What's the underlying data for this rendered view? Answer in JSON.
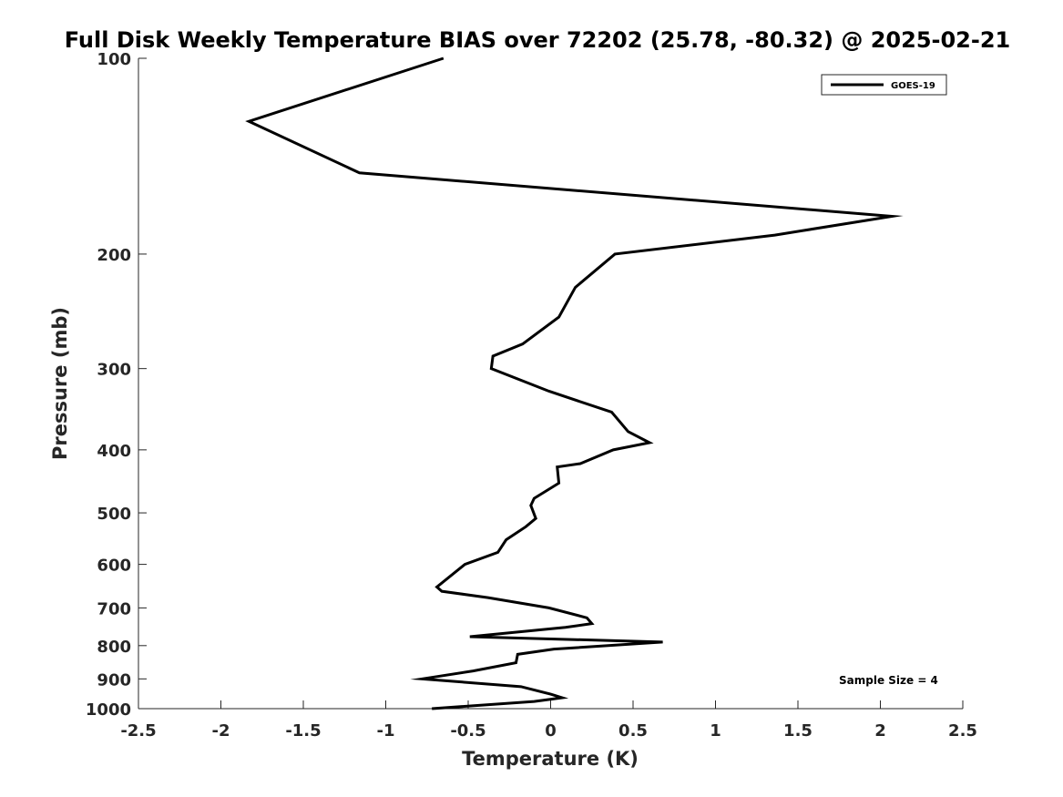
{
  "chart_data": {
    "type": "line",
    "title": "Full Disk Weekly Temperature BIAS over 72202 (25.78, -80.32) @ 2025-02-21",
    "xlabel": "Temperature (K)",
    "ylabel": "Pressure (mb)",
    "xlim": [
      -2.5,
      2.5
    ],
    "ylim": [
      100,
      1000
    ],
    "y_scale": "log",
    "y_reversed": true,
    "xticks": [
      -2.5,
      -2,
      -1.5,
      -1,
      -0.5,
      0,
      0.5,
      1,
      1.5,
      2,
      2.5
    ],
    "xtick_labels": [
      "-2.5",
      "-2",
      "-1.5",
      "-1",
      "-0.5",
      "0",
      "0.5",
      "1",
      "1.5",
      "2",
      "2.5"
    ],
    "yticks": [
      100,
      200,
      300,
      400,
      500,
      600,
      700,
      800,
      900,
      1000
    ],
    "ytick_labels": [
      "100",
      "200",
      "300",
      "400",
      "500",
      "600",
      "700",
      "800",
      "900",
      "1000"
    ],
    "grid": false,
    "legend_position": "top-right",
    "annotation": "Sample Size = 4",
    "series": [
      {
        "name": "GOES-19",
        "color": "#000000",
        "points": [
          {
            "x": -0.65,
            "y": 100
          },
          {
            "x": -1.83,
            "y": 125
          },
          {
            "x": -1.16,
            "y": 150
          },
          {
            "x": 2.07,
            "y": 175
          },
          {
            "x": 1.36,
            "y": 187
          },
          {
            "x": 0.39,
            "y": 200
          },
          {
            "x": 0.15,
            "y": 225
          },
          {
            "x": 0.05,
            "y": 250
          },
          {
            "x": -0.17,
            "y": 275
          },
          {
            "x": -0.35,
            "y": 287
          },
          {
            "x": -0.36,
            "y": 300
          },
          {
            "x": -0.01,
            "y": 325
          },
          {
            "x": 0.37,
            "y": 350
          },
          {
            "x": 0.47,
            "y": 375
          },
          {
            "x": 0.6,
            "y": 390
          },
          {
            "x": 0.38,
            "y": 400
          },
          {
            "x": 0.18,
            "y": 420
          },
          {
            "x": 0.04,
            "y": 425
          },
          {
            "x": 0.05,
            "y": 450
          },
          {
            "x": -0.1,
            "y": 475
          },
          {
            "x": -0.12,
            "y": 487
          },
          {
            "x": -0.09,
            "y": 510
          },
          {
            "x": -0.15,
            "y": 525
          },
          {
            "x": -0.27,
            "y": 550
          },
          {
            "x": -0.32,
            "y": 575
          },
          {
            "x": -0.52,
            "y": 600
          },
          {
            "x": -0.69,
            "y": 650
          },
          {
            "x": -0.66,
            "y": 660
          },
          {
            "x": -0.38,
            "y": 675
          },
          {
            "x": -0.01,
            "y": 700
          },
          {
            "x": 0.22,
            "y": 725
          },
          {
            "x": 0.25,
            "y": 740
          },
          {
            "x": 0.09,
            "y": 750
          },
          {
            "x": -0.49,
            "y": 775
          },
          {
            "x": 0.68,
            "y": 790
          },
          {
            "x": 0.02,
            "y": 810
          },
          {
            "x": -0.2,
            "y": 825
          },
          {
            "x": -0.21,
            "y": 850
          },
          {
            "x": -0.47,
            "y": 875
          },
          {
            "x": -0.78,
            "y": 900
          },
          {
            "x": -0.18,
            "y": 925
          },
          {
            "x": 0.0,
            "y": 950
          },
          {
            "x": 0.07,
            "y": 962
          },
          {
            "x": -0.1,
            "y": 975
          },
          {
            "x": -0.72,
            "y": 1000
          }
        ]
      }
    ]
  }
}
